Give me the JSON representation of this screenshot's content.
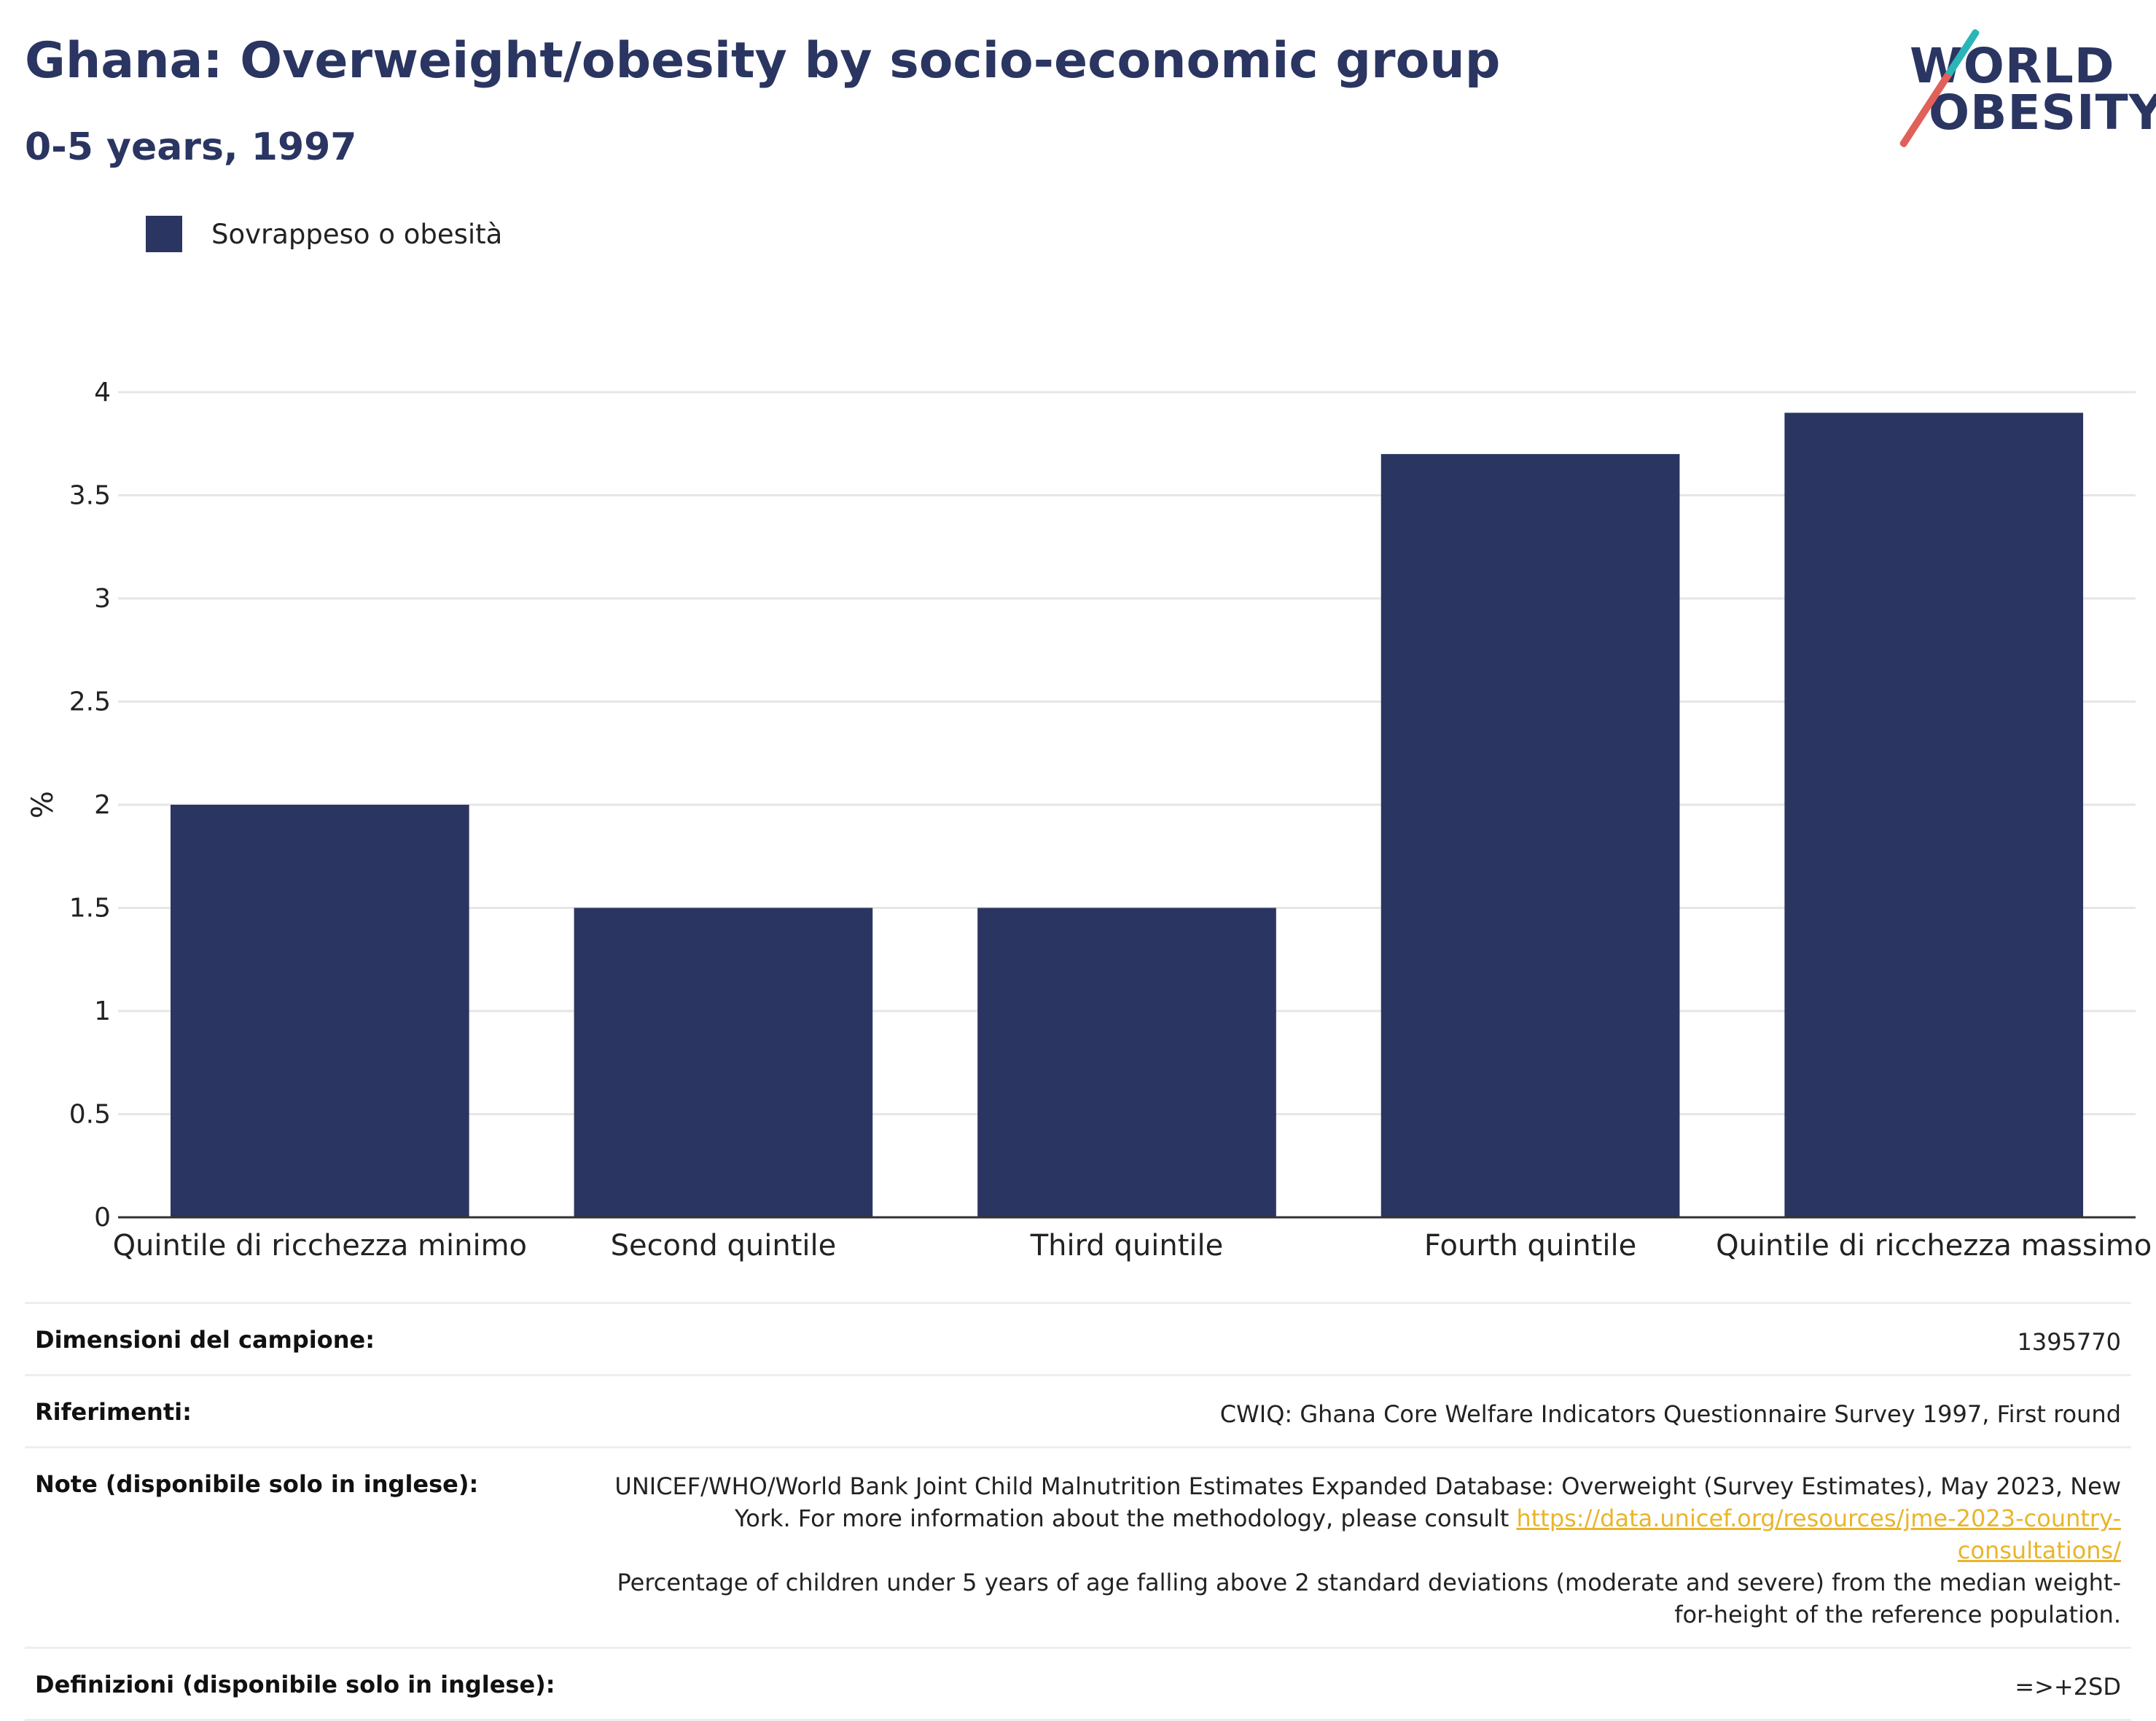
{
  "header": {
    "title": "Ghana: Overweight/obesity by socio-economic group",
    "subtitle": "0-5 years, 1997"
  },
  "logo": {
    "line1": "WORLD",
    "line2": "OBESITY",
    "colors": {
      "text": "#2a3561",
      "slash_top": "#2ab5b9",
      "slash_bottom": "#e0605a"
    }
  },
  "legend": {
    "label": "Sovrappeso o obesità",
    "color": "#2a3561"
  },
  "chart_data": {
    "type": "bar",
    "categories": [
      "Quintile di ricchezza minimo",
      "Second quintile",
      "Third quintile",
      "Fourth quintile",
      "Quintile di ricchezza massimo"
    ],
    "series": [
      {
        "name": "Sovrappeso o obesità",
        "values": [
          2.0,
          1.5,
          1.5,
          3.7,
          3.9
        ],
        "color": "#2a3561"
      }
    ],
    "ylabel": "%",
    "xlabel": "",
    "ylim": [
      0,
      4
    ],
    "yticks": [
      0,
      0.5,
      1,
      1.5,
      2,
      2.5,
      3,
      3.5,
      4
    ],
    "grid": true,
    "legend_position": "top-left"
  },
  "meta": {
    "sample_size_label": "Dimensioni del campione:",
    "sample_size_value": "1395770",
    "references_label": "Riferimenti:",
    "references_value": "CWIQ: Ghana Core Welfare Indicators Questionnaire Survey 1997, First round",
    "notes_label": "Note (disponibile solo in inglese):",
    "notes_text1": "UNICEF/WHO/World Bank Joint Child Malnutrition Estimates Expanded Database: Overweight (Survey Estimates), May 2023, New York. For more information about the methodology, please consult ",
    "notes_link": "https://data.unicef.org/resources/jme-2023-country-consultations/",
    "notes_text2": "Percentage of children under 5 years of age falling above 2 standard deviations (moderate and severe) from the median weight-for-height of the reference population.",
    "definitions_label": "Definizioni (disponibile solo in inglese):",
    "definitions_value": "=>+2SD"
  }
}
